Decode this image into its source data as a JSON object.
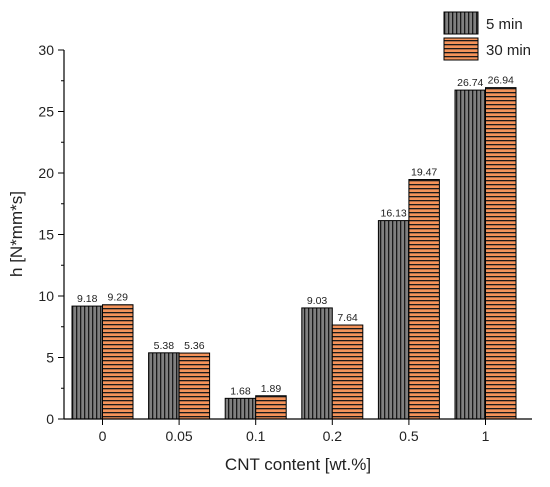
{
  "chart_data": {
    "type": "bar",
    "xlabel": "CNT content [wt.%]",
    "ylabel": "h [N*mm*s]",
    "categories": [
      "0",
      "0.05",
      "0.1",
      "0.2",
      "0.5",
      "1"
    ],
    "ylim": [
      0,
      30
    ],
    "yticks": [
      "0",
      "5",
      "10",
      "15",
      "20",
      "25",
      "30"
    ],
    "grid": false,
    "legend_position": "top-right",
    "series": [
      {
        "name": "5 min",
        "values": [
          9.18,
          5.38,
          1.68,
          9.03,
          16.13,
          26.74
        ],
        "labels": [
          "9.18",
          "5.38",
          "1.68",
          "9.03",
          "16.13",
          "26.74"
        ],
        "color": "#7f7f7f",
        "pattern": "vertical-lines"
      },
      {
        "name": "30 min",
        "values": [
          9.29,
          5.36,
          1.89,
          7.64,
          19.47,
          26.94
        ],
        "labels": [
          "9.29",
          "5.36",
          "1.89",
          "7.64",
          "19.47",
          "26.94"
        ],
        "color": "#f4935a",
        "pattern": "horizontal-lines"
      }
    ]
  }
}
